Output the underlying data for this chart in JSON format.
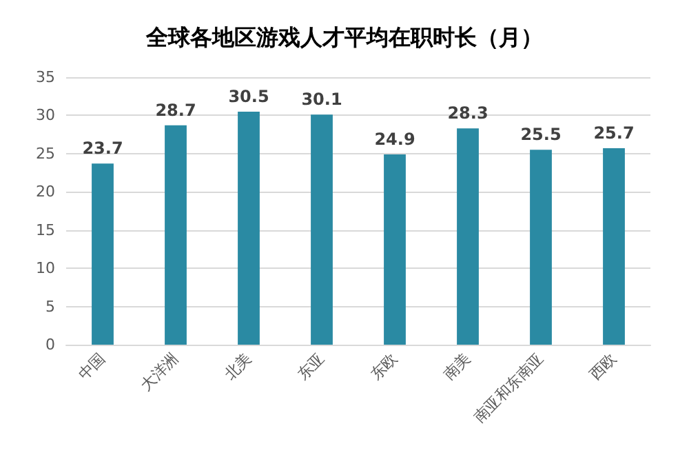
{
  "chart_data": {
    "type": "bar",
    "title": "全球各地区游戏人才平均在职时长（月）",
    "categories": [
      "中国",
      "大洋洲",
      "北美",
      "东亚",
      "东欧",
      "南美",
      "南亚和东南亚",
      "西欧"
    ],
    "values": [
      23.7,
      28.7,
      30.5,
      30.1,
      24.9,
      28.3,
      25.5,
      25.7
    ],
    "color": "#2a8aa3",
    "ylim": [
      0,
      35
    ],
    "yticks": [
      0,
      5,
      10,
      15,
      20,
      25,
      30,
      35
    ],
    "grid": "y",
    "data_labels": true
  }
}
